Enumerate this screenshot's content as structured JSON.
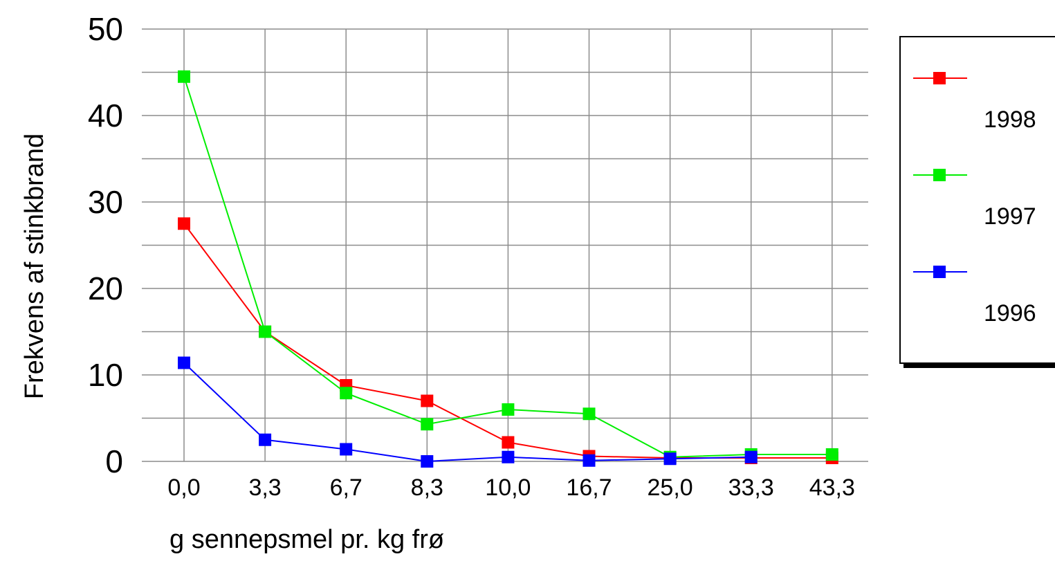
{
  "chart_data": {
    "type": "line",
    "ylabel": "Frekvens af stinkbrand",
    "xlabel": "g sennepsmel pr. kg frø",
    "categories": [
      "0,0",
      "3,3",
      "6,7",
      "8,3",
      "10,0",
      "16,7",
      "25,0",
      "33,3",
      "43,3"
    ],
    "y_ticks": [
      "0",
      "10",
      "20",
      "30",
      "40",
      "50"
    ],
    "ylim": [
      0,
      50
    ],
    "grid": true,
    "legend_position": "right",
    "series": [
      {
        "name": "1998",
        "color": "#ff0000",
        "values": [
          27.5,
          15.0,
          8.8,
          7.0,
          2.2,
          0.6,
          0.4,
          0.4,
          0.4
        ]
      },
      {
        "name": "1997",
        "color": "#00ee00",
        "values": [
          44.5,
          15.0,
          7.9,
          4.3,
          6.0,
          5.5,
          0.5,
          0.8,
          0.8
        ]
      },
      {
        "name": "1996",
        "color": "#0000ff",
        "values": [
          11.4,
          2.5,
          1.4,
          0.0,
          0.5,
          0.1,
          0.3,
          0.5,
          null
        ]
      }
    ]
  }
}
